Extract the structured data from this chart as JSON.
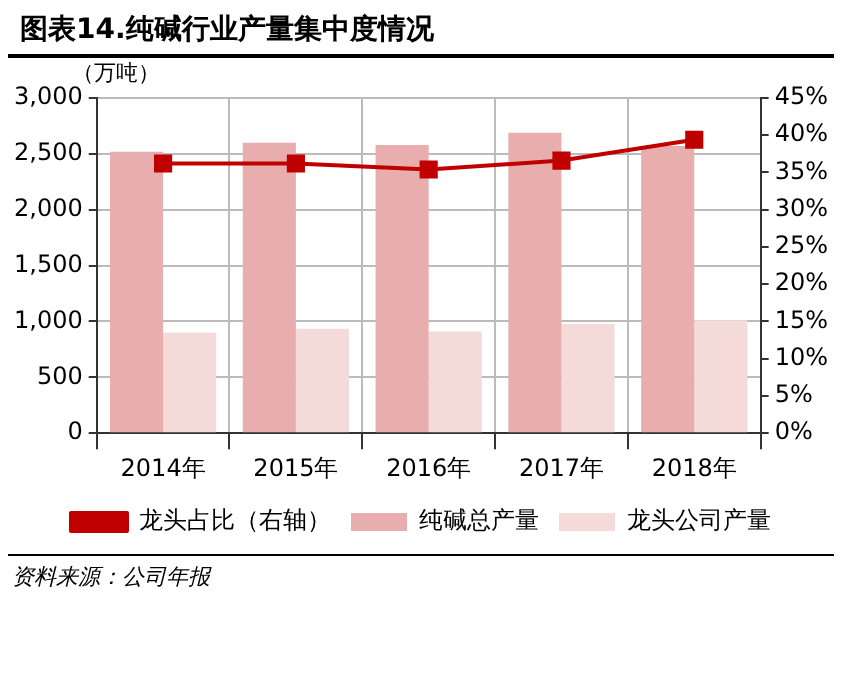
{
  "chart_data": {
    "type": "bar",
    "title": "图表14.纯碱行业产量集中度情况",
    "ylabel": "（万吨）",
    "categories": [
      "2014年",
      "2015年",
      "2016年",
      "2017年",
      "2018年"
    ],
    "series": [
      {
        "name": "纯碱总产量",
        "color": "#e8aeae",
        "values": [
          2520,
          2600,
          2580,
          2690,
          2570
        ]
      },
      {
        "name": "龙头公司产量",
        "color": "#f5dada",
        "values": [
          900,
          935,
          910,
          980,
          1010
        ]
      },
      {
        "name": "龙头占比（右轴）",
        "type": "line",
        "axis": "y2",
        "color": "#c00000",
        "marker": "square",
        "values": [
          36.2,
          36.2,
          35.4,
          36.6,
          39.4
        ]
      }
    ],
    "ylim": [
      0,
      3000
    ],
    "yticks": [
      {
        "value": 0,
        "label": "0"
      },
      {
        "value": 500,
        "label": "500"
      },
      {
        "value": 1000,
        "label": "1,000"
      },
      {
        "value": 1500,
        "label": "1,500"
      },
      {
        "value": 2000,
        "label": "2,000"
      },
      {
        "value": 2500,
        "label": "2,500"
      },
      {
        "value": 3000,
        "label": "3,000"
      }
    ],
    "y2lim": [
      0,
      45
    ],
    "y2ticks": [
      {
        "value": 0,
        "label": "0%"
      },
      {
        "value": 5,
        "label": "5%"
      },
      {
        "value": 10,
        "label": "10%"
      },
      {
        "value": 15,
        "label": "15%"
      },
      {
        "value": 20,
        "label": "20%"
      },
      {
        "value": 25,
        "label": "25%"
      },
      {
        "value": 30,
        "label": "30%"
      },
      {
        "value": 35,
        "label": "35%"
      },
      {
        "value": 40,
        "label": "40%"
      },
      {
        "value": 45,
        "label": "45%"
      }
    ],
    "grid": true,
    "legend": "bottom",
    "annotations": [
      "资料来源：公司年报"
    ]
  }
}
